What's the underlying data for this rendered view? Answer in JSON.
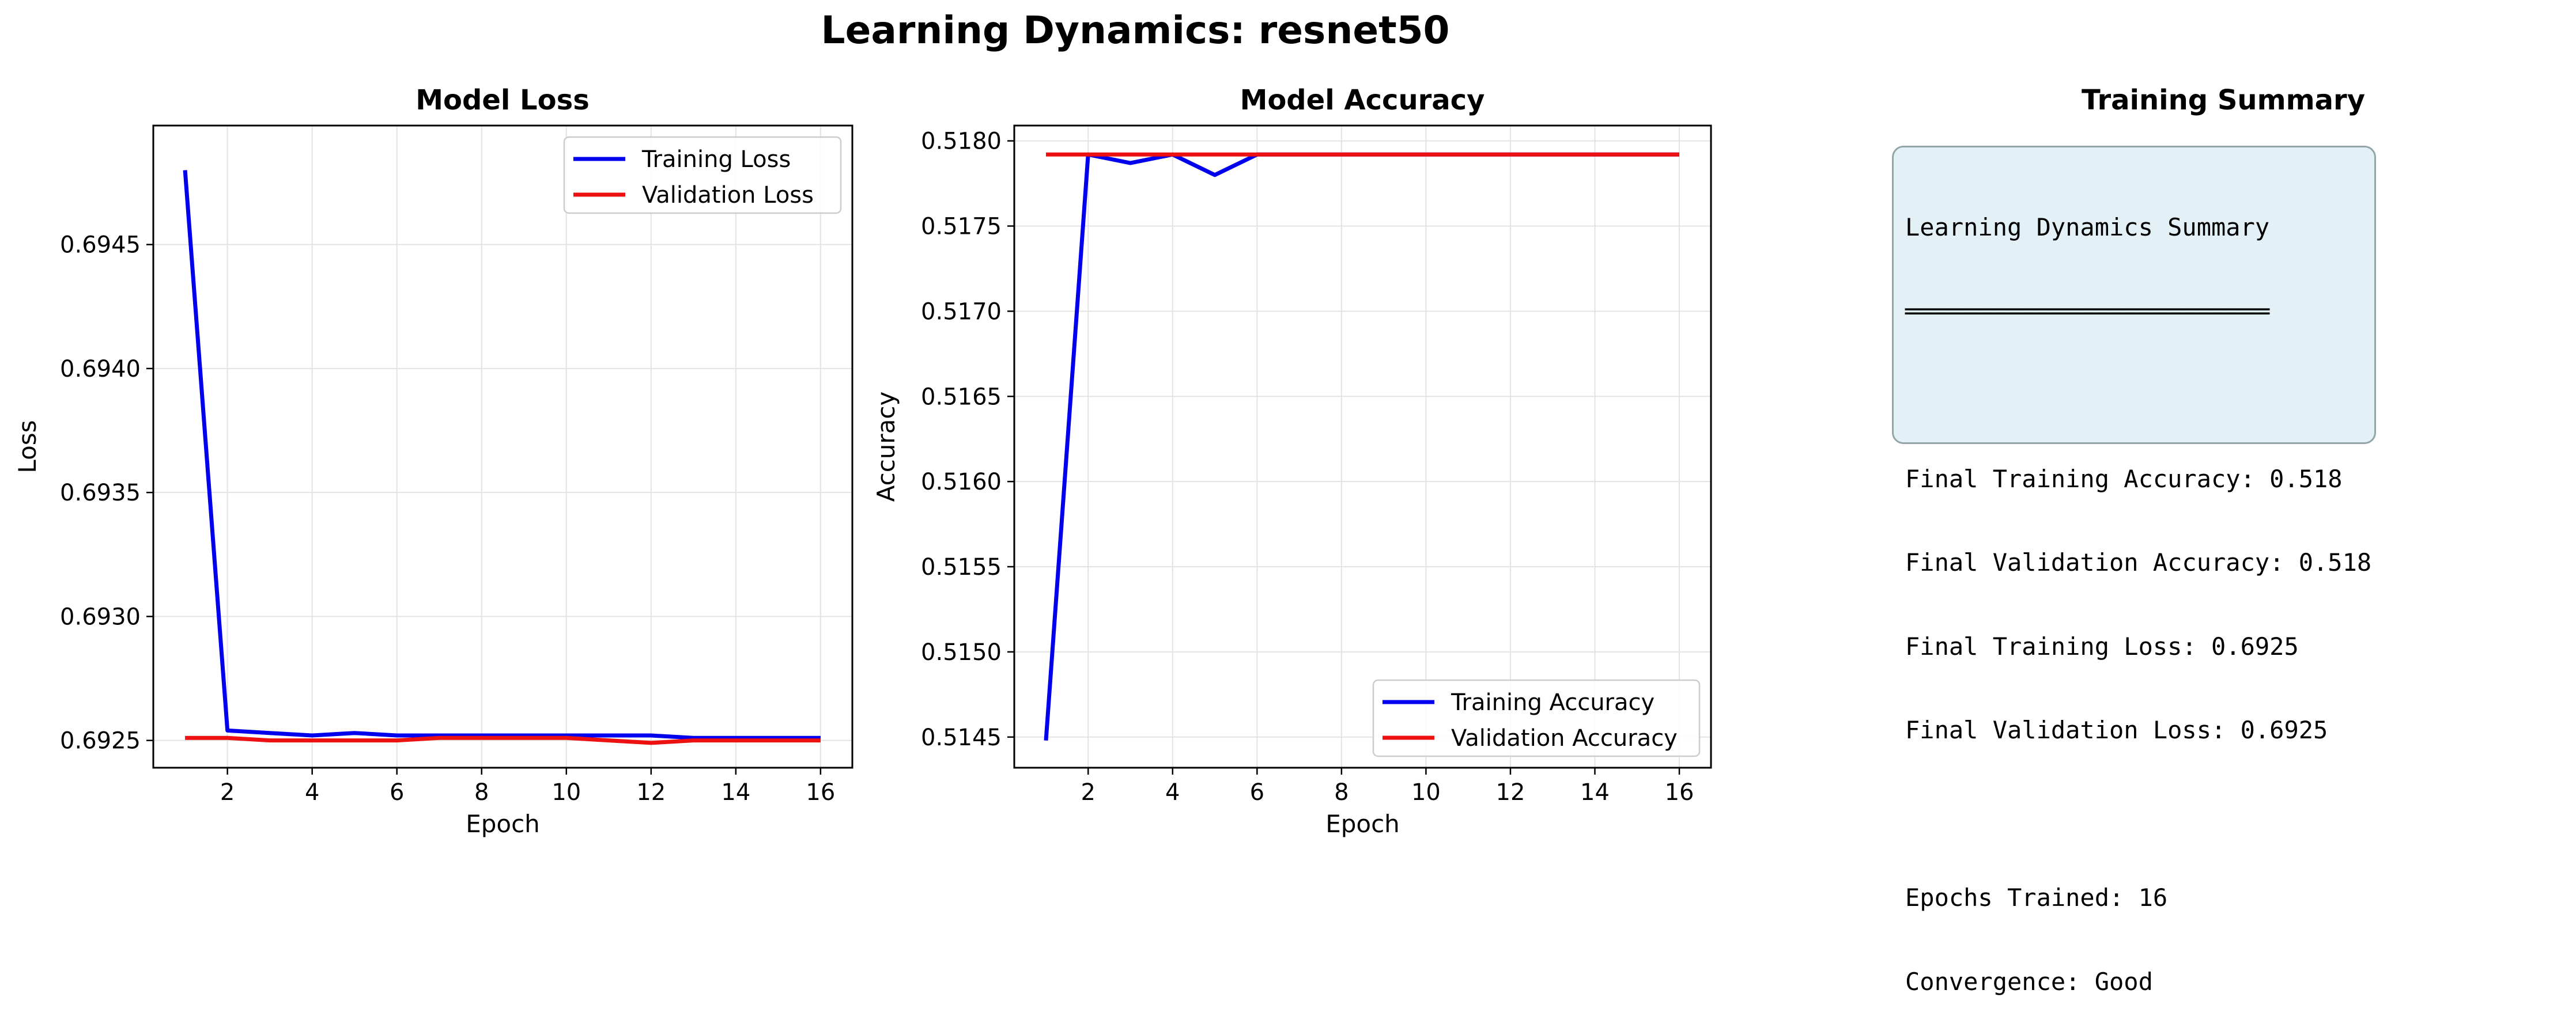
{
  "figure": {
    "suptitle": "Learning Dynamics: resnet50"
  },
  "colors": {
    "training": "#0000ee",
    "validation": "#ee1111",
    "summary_bg": "#e3f1f6",
    "summary_border": "#95a5a6"
  },
  "chart_data": [
    {
      "type": "line",
      "title": "Model Loss",
      "xlabel": "Epoch",
      "ylabel": "Loss",
      "xlim": [
        0.25,
        16.75
      ],
      "ylim": [
        0.69239,
        0.69498
      ],
      "xticks": [
        2,
        4,
        6,
        8,
        10,
        12,
        14,
        16
      ],
      "yticks": [
        0.6925,
        0.693,
        0.6935,
        0.694,
        0.6945
      ],
      "ytick_labels": [
        "0.6925",
        "0.6930",
        "0.6935",
        "0.6940",
        "0.6945"
      ],
      "grid": true,
      "legend_position": "upper right",
      "x": [
        1,
        2,
        3,
        4,
        5,
        6,
        7,
        8,
        9,
        10,
        11,
        12,
        13,
        14,
        15,
        16
      ],
      "series": [
        {
          "name": "Training Loss",
          "color": "#0000ee",
          "values": [
            0.6948,
            0.69254,
            0.69253,
            0.69252,
            0.69253,
            0.69252,
            0.69252,
            0.69252,
            0.69252,
            0.69252,
            0.69252,
            0.69252,
            0.69251,
            0.69251,
            0.69251,
            0.69251
          ]
        },
        {
          "name": "Validation Loss",
          "color": "#ee1111",
          "values": [
            0.69251,
            0.69251,
            0.6925,
            0.6925,
            0.6925,
            0.6925,
            0.69251,
            0.69251,
            0.69251,
            0.69251,
            0.6925,
            0.69249,
            0.6925,
            0.6925,
            0.6925,
            0.6925
          ]
        }
      ]
    },
    {
      "type": "line",
      "title": "Model Accuracy",
      "xlabel": "Epoch",
      "ylabel": "Accuracy",
      "xlim": [
        0.25,
        16.75
      ],
      "ylim": [
        0.51432,
        0.51809
      ],
      "xticks": [
        2,
        4,
        6,
        8,
        10,
        12,
        14,
        16
      ],
      "yticks": [
        0.5145,
        0.515,
        0.5155,
        0.516,
        0.5165,
        0.517,
        0.5175,
        0.518
      ],
      "ytick_labels": [
        "0.5145",
        "0.5150",
        "0.5155",
        "0.5160",
        "0.5165",
        "0.5170",
        "0.5175",
        "0.5180"
      ],
      "grid": true,
      "legend_position": "lower right",
      "x": [
        1,
        2,
        3,
        4,
        5,
        6,
        7,
        8,
        9,
        10,
        11,
        12,
        13,
        14,
        15,
        16
      ],
      "series": [
        {
          "name": "Training Accuracy",
          "color": "#0000ee",
          "values": [
            0.51448,
            0.51792,
            0.51787,
            0.51792,
            0.5178,
            0.51792,
            0.51792,
            0.51792,
            0.51792,
            0.51792,
            0.51792,
            0.51792,
            0.51792,
            0.51792,
            0.51792,
            0.51792
          ]
        },
        {
          "name": "Validation Accuracy",
          "color": "#ee1111",
          "values": [
            0.51792,
            0.51792,
            0.51792,
            0.51792,
            0.51792,
            0.51792,
            0.51792,
            0.51792,
            0.51792,
            0.51792,
            0.51792,
            0.51792,
            0.51792,
            0.51792,
            0.51792,
            0.51792
          ]
        }
      ]
    }
  ],
  "summary": {
    "title": "Training Summary",
    "lines": [
      "Learning Dynamics Summary",
      "═════════════════════════",
      "",
      "Final Training Accuracy: 0.518",
      "Final Validation Accuracy: 0.518",
      "Final Training Loss: 0.6925",
      "Final Validation Loss: 0.6925",
      "",
      "Epochs Trained: 16",
      "Convergence: Good"
    ]
  }
}
